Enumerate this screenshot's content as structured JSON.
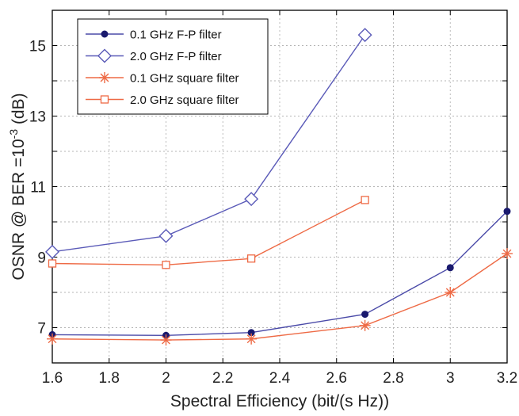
{
  "chart_data": {
    "type": "line",
    "xlabel": "Spectral Efficiency (bit/(s Hz))",
    "ylabel": "OSNR @ BER =10",
    "ylabel_exponent": "-3",
    "ylabel_unit": " (dB)",
    "xlim": [
      1.6,
      3.2
    ],
    "ylim": [
      6.0,
      16.0
    ],
    "x_ticks": [
      1.6,
      1.8,
      2.0,
      2.2,
      2.4,
      2.6,
      2.8,
      3.0,
      3.2
    ],
    "x_tick_labels": [
      "1.6",
      "1.8",
      "2",
      "2.2",
      "2.4",
      "2.6",
      "2.8",
      "3",
      "3.2"
    ],
    "y_ticks": [
      7,
      9,
      11,
      13,
      15
    ],
    "y_tick_labels": [
      "7",
      "9",
      "11",
      "13",
      "15"
    ],
    "y_grid": [
      6,
      7,
      8,
      9,
      10,
      11,
      12,
      13,
      14,
      15,
      16
    ],
    "grid": true,
    "legend_position": "top-left",
    "series": [
      {
        "name": "0.1 GHz F-P filter",
        "color": "#4a4aa8",
        "marker": "dot",
        "points": [
          [
            1.6,
            6.8
          ],
          [
            2.0,
            6.78
          ],
          [
            2.3,
            6.86
          ],
          [
            2.7,
            7.38
          ],
          [
            3.0,
            8.7
          ],
          [
            3.2,
            10.3
          ]
        ]
      },
      {
        "name": "2.0 GHz F-P filter",
        "color": "#5a5ab8",
        "marker": "diamond",
        "points": [
          [
            1.6,
            9.15
          ],
          [
            2.0,
            9.6
          ],
          [
            2.3,
            10.65
          ],
          [
            2.7,
            15.3
          ]
        ]
      },
      {
        "name": "0.1 GHz square filter",
        "color": "#ee6a45",
        "marker": "asterisk",
        "points": [
          [
            1.6,
            6.68
          ],
          [
            2.0,
            6.65
          ],
          [
            2.3,
            6.68
          ],
          [
            2.7,
            7.06
          ],
          [
            3.0,
            8.0
          ],
          [
            3.2,
            9.1
          ]
        ]
      },
      {
        "name": "2.0 GHz square filter",
        "color": "#ee6a45",
        "marker": "square",
        "points": [
          [
            1.6,
            8.82
          ],
          [
            2.0,
            8.78
          ],
          [
            2.3,
            8.96
          ],
          [
            2.7,
            10.62
          ]
        ]
      }
    ]
  }
}
